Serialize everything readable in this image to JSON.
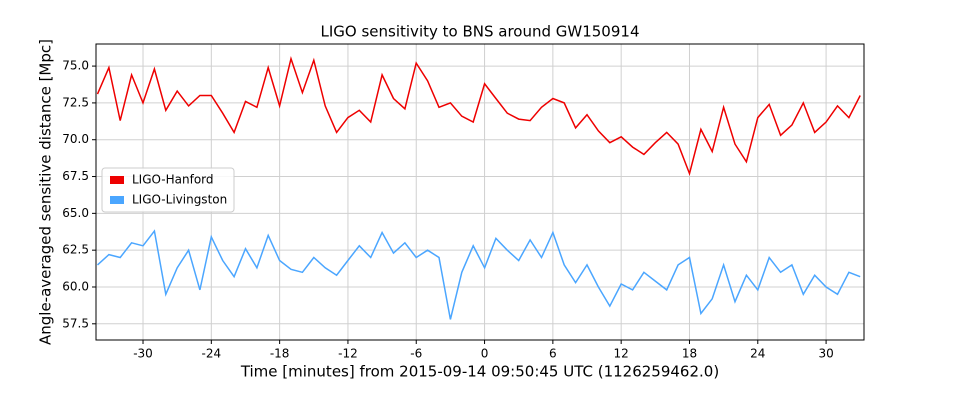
{
  "chart_data": {
    "type": "line",
    "title": "LIGO sensitivity to BNS around GW150914",
    "x_label": "Time [minutes] from 2015-09-14 09:50:45 UTC (1126259462.0)",
    "y_label": "Angle-averaged sensitive distance [Mpc]",
    "x": [
      -34,
      -33,
      -32,
      -31,
      -30,
      -29,
      -28,
      -27,
      -26,
      -25,
      -24,
      -23,
      -22,
      -21,
      -20,
      -19,
      -18,
      -17,
      -16,
      -15,
      -14,
      -13,
      -12,
      -11,
      -10,
      -9,
      -8,
      -7,
      -6,
      -5,
      -4,
      -3,
      -2,
      -1,
      0,
      1,
      2,
      3,
      4,
      5,
      6,
      7,
      8,
      9,
      10,
      11,
      12,
      13,
      14,
      15,
      16,
      17,
      18,
      19,
      20,
      21,
      22,
      23,
      24,
      25,
      26,
      27,
      28,
      29,
      30,
      31,
      32,
      33
    ],
    "series": [
      {
        "name": "LIGO-Hanford",
        "color": "#ee0000",
        "values": [
          73.1,
          74.9,
          71.3,
          74.4,
          72.5,
          74.8,
          72.0,
          73.3,
          72.3,
          73.0,
          73.0,
          71.8,
          70.5,
          72.6,
          72.2,
          74.9,
          72.3,
          75.5,
          73.2,
          75.4,
          72.3,
          70.5,
          71.5,
          72.0,
          71.2,
          74.4,
          72.8,
          72.1,
          75.2,
          74.0,
          72.2,
          72.5,
          71.6,
          71.2,
          73.8,
          72.8,
          71.8,
          71.4,
          71.3,
          72.2,
          72.8,
          72.5,
          70.8,
          71.7,
          70.6,
          69.8,
          70.2,
          69.5,
          69.0,
          69.8,
          70.5,
          69.7,
          67.7,
          70.7,
          69.2,
          72.2,
          69.7,
          68.5,
          71.5,
          72.4,
          70.3,
          71.0,
          72.5,
          70.5,
          71.2,
          72.3,
          71.5,
          73.0
        ]
      },
      {
        "name": "LIGO-Livingston",
        "color": "#4ba6ff",
        "values": [
          61.5,
          62.2,
          62.0,
          63.0,
          62.8,
          63.8,
          59.5,
          61.3,
          62.5,
          59.8,
          63.4,
          61.8,
          60.7,
          62.6,
          61.3,
          63.5,
          61.8,
          61.2,
          61.0,
          62.0,
          61.3,
          60.8,
          61.8,
          62.8,
          62.0,
          63.7,
          62.3,
          63.0,
          62.0,
          62.5,
          62.0,
          57.8,
          61.0,
          62.8,
          61.3,
          63.3,
          62.5,
          61.8,
          63.2,
          62.0,
          63.7,
          61.5,
          60.3,
          61.5,
          60.0,
          58.7,
          60.2,
          59.8,
          61.0,
          60.4,
          59.8,
          61.5,
          62.0,
          58.2,
          59.2,
          61.5,
          59.0,
          60.8,
          59.8,
          62.0,
          61.0,
          61.5,
          59.5,
          60.8,
          60.0,
          59.5,
          61.0,
          60.7
        ]
      }
    ],
    "xlim": [
      -34.13,
      33.33
    ],
    "ylim": [
      56.4,
      76.5
    ],
    "xticks": [
      -30,
      -24,
      -18,
      -12,
      -6,
      0,
      6,
      12,
      18,
      24,
      30
    ],
    "yticks": [
      {
        "value": 57.5,
        "label": "57.5"
      },
      {
        "value": 60,
        "label": "60.0"
      },
      {
        "value": 62.5,
        "label": "62.5"
      },
      {
        "value": 65,
        "label": "65.0"
      },
      {
        "value": 67.5,
        "label": "67.5"
      },
      {
        "value": 70,
        "label": "70.0"
      },
      {
        "value": 72.5,
        "label": "72.5"
      },
      {
        "value": 75,
        "label": "75.0"
      }
    ],
    "grid": true,
    "legend": "center left"
  }
}
